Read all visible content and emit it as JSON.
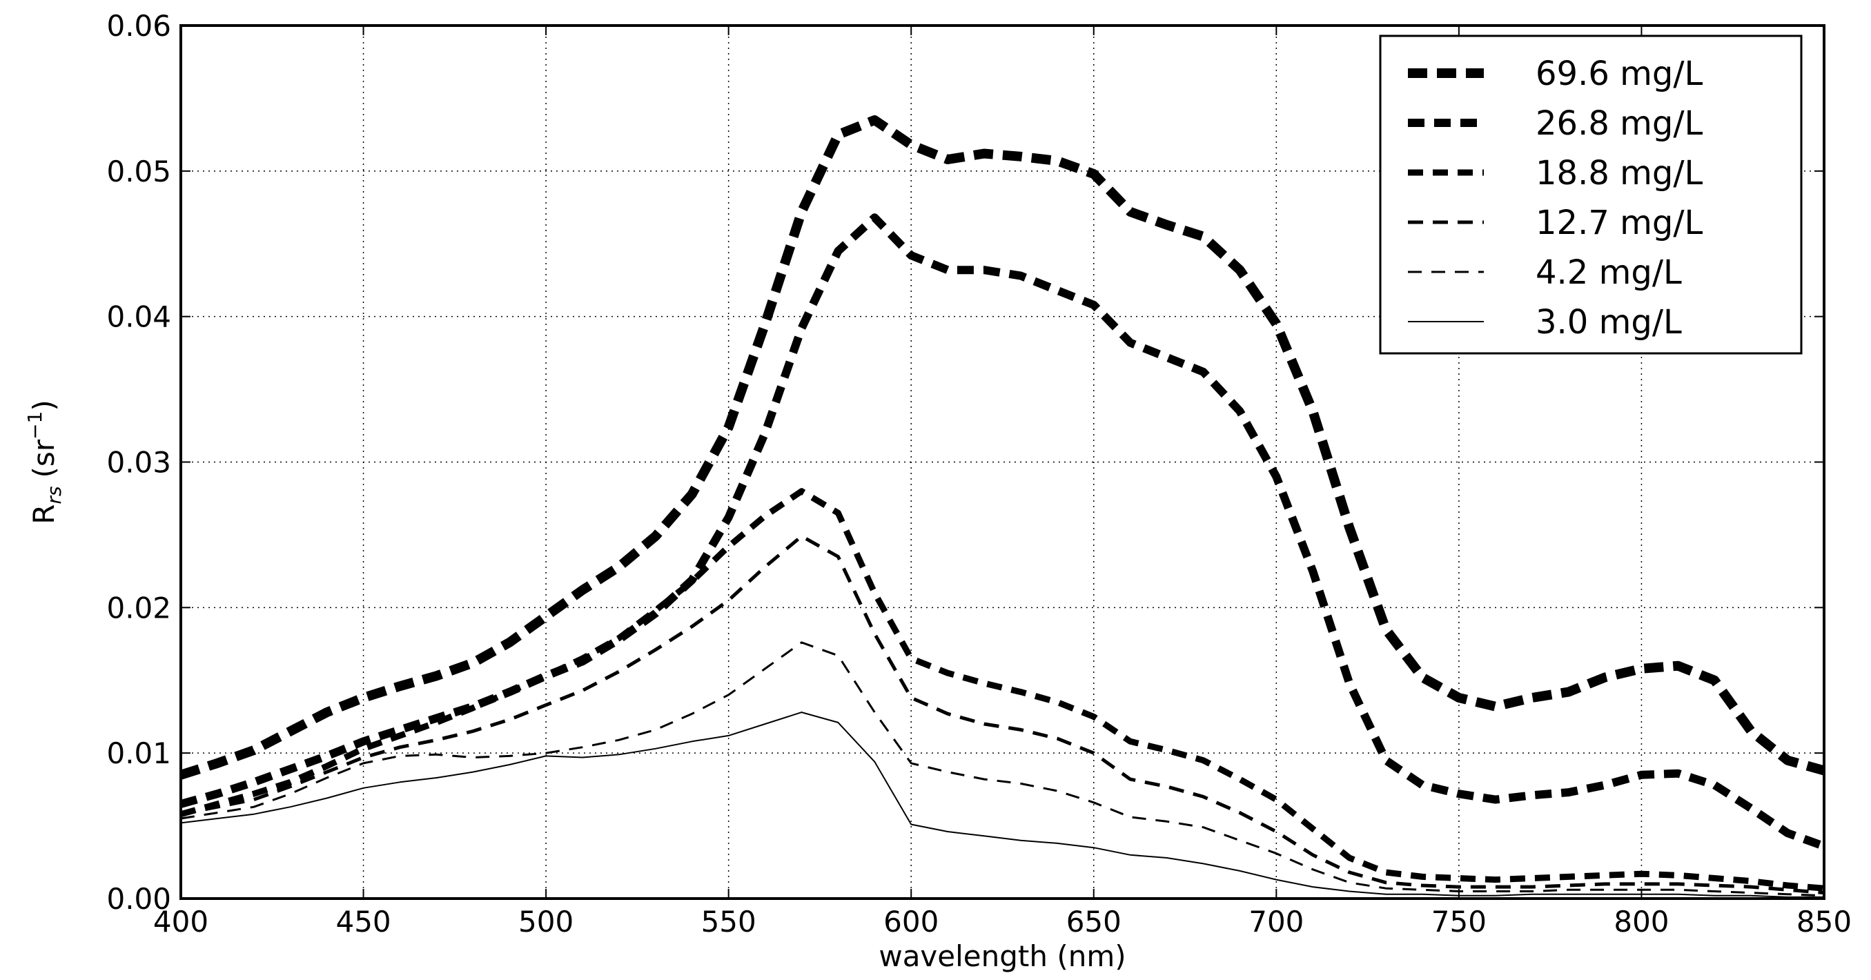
{
  "chart_data": {
    "type": "line",
    "xlabel": "wavelength (nm)",
    "ylabel": "R_rs (sr⁻¹)",
    "ylabel_parts": {
      "base": "R",
      "sub": "rs",
      "units": "(sr",
      "sup": "−1",
      "close": ")"
    },
    "xlim": [
      400,
      850
    ],
    "ylim": [
      0,
      0.06
    ],
    "xticks": [
      400,
      450,
      500,
      550,
      600,
      650,
      700,
      750,
      800,
      850
    ],
    "xtick_labels": [
      "400",
      "450",
      "500",
      "550",
      "600",
      "650",
      "700",
      "750",
      "800",
      "850"
    ],
    "yticks": [
      0,
      0.01,
      0.02,
      0.03,
      0.04,
      0.05,
      0.06
    ],
    "ytick_labels": [
      "0.00",
      "0.01",
      "0.02",
      "0.03",
      "0.04",
      "0.05",
      "0.06"
    ],
    "grid": true,
    "legend_position": "top-right",
    "x": [
      400,
      410,
      420,
      430,
      440,
      450,
      460,
      470,
      480,
      490,
      500,
      510,
      520,
      530,
      540,
      550,
      560,
      570,
      580,
      590,
      600,
      610,
      620,
      630,
      640,
      650,
      660,
      670,
      680,
      690,
      700,
      710,
      720,
      730,
      740,
      750,
      760,
      770,
      780,
      790,
      800,
      810,
      820,
      830,
      840,
      850
    ],
    "series": [
      {
        "name": "69.6 mg/L",
        "line_width": 14,
        "dash": [
          28,
          14
        ],
        "values": [
          0.0085,
          0.0093,
          0.0102,
          0.0115,
          0.0128,
          0.0138,
          0.0146,
          0.0153,
          0.0162,
          0.0176,
          0.0194,
          0.0212,
          0.0228,
          0.0249,
          0.0278,
          0.0324,
          0.0395,
          0.0472,
          0.0525,
          0.0535,
          0.0518,
          0.0508,
          0.0512,
          0.051,
          0.0507,
          0.0498,
          0.0472,
          0.0463,
          0.0455,
          0.0432,
          0.0395,
          0.0335,
          0.0255,
          0.0185,
          0.0152,
          0.0138,
          0.0132,
          0.0138,
          0.0142,
          0.0152,
          0.0158,
          0.016,
          0.015,
          0.0115,
          0.0095,
          0.0088
        ]
      },
      {
        "name": "26.8 mg/L",
        "line_width": 12,
        "dash": [
          24,
          14
        ],
        "values": [
          0.0065,
          0.0072,
          0.008,
          0.0089,
          0.0098,
          0.0108,
          0.0116,
          0.0124,
          0.0132,
          0.0142,
          0.0153,
          0.0163,
          0.0178,
          0.0196,
          0.0219,
          0.0262,
          0.032,
          0.0392,
          0.0445,
          0.0468,
          0.0442,
          0.0432,
          0.0432,
          0.0428,
          0.0418,
          0.0408,
          0.0382,
          0.0372,
          0.0362,
          0.0335,
          0.029,
          0.0225,
          0.0148,
          0.0095,
          0.0078,
          0.0072,
          0.0068,
          0.0071,
          0.0073,
          0.0078,
          0.0085,
          0.0086,
          0.0078,
          0.0062,
          0.0045,
          0.0036
        ]
      },
      {
        "name": "18.8 mg/L",
        "line_width": 9,
        "dash": [
          22,
          14
        ],
        "values": [
          0.0058,
          0.0065,
          0.0072,
          0.008,
          0.0091,
          0.0103,
          0.0112,
          0.0121,
          0.0131,
          0.0142,
          0.0153,
          0.0165,
          0.0179,
          0.0198,
          0.0218,
          0.0242,
          0.0263,
          0.028,
          0.0265,
          0.021,
          0.0165,
          0.0155,
          0.0148,
          0.0142,
          0.0135,
          0.0125,
          0.0108,
          0.0102,
          0.0095,
          0.0082,
          0.0068,
          0.0048,
          0.0028,
          0.0018,
          0.0015,
          0.0014,
          0.0013,
          0.0014,
          0.0015,
          0.0016,
          0.0017,
          0.0016,
          0.0014,
          0.0012,
          0.0009,
          0.0007
        ]
      },
      {
        "name": "12.7 mg/L",
        "line_width": 5,
        "dash": [
          22,
          14
        ],
        "values": [
          0.0058,
          0.0063,
          0.0068,
          0.0077,
          0.0087,
          0.0097,
          0.0104,
          0.0109,
          0.0115,
          0.0123,
          0.0133,
          0.0143,
          0.0156,
          0.0171,
          0.0187,
          0.0205,
          0.0228,
          0.0249,
          0.0235,
          0.0182,
          0.0138,
          0.0127,
          0.012,
          0.0116,
          0.011,
          0.01,
          0.0082,
          0.0077,
          0.007,
          0.0059,
          0.0046,
          0.003,
          0.0018,
          0.0011,
          0.0009,
          0.0008,
          0.0008,
          0.0008,
          0.0009,
          0.001,
          0.001,
          0.001,
          0.0009,
          0.0008,
          0.0006,
          0.0004
        ]
      },
      {
        "name": "4.2 mg/L",
        "line_width": 3,
        "dash": [
          20,
          14
        ],
        "values": [
          0.0055,
          0.0059,
          0.0063,
          0.0072,
          0.0083,
          0.0093,
          0.0098,
          0.0099,
          0.0097,
          0.0098,
          0.01,
          0.0104,
          0.0109,
          0.0116,
          0.0127,
          0.014,
          0.0158,
          0.0176,
          0.0167,
          0.0128,
          0.0093,
          0.0087,
          0.0082,
          0.0079,
          0.0074,
          0.0066,
          0.0056,
          0.0053,
          0.0049,
          0.004,
          0.0031,
          0.002,
          0.0011,
          0.0007,
          0.0006,
          0.0005,
          0.0005,
          0.0005,
          0.0006,
          0.0006,
          0.0006,
          0.0006,
          0.0005,
          0.0004,
          0.0003,
          0.0002
        ]
      },
      {
        "name": "3.0 mg/L",
        "line_width": 2,
        "dash": [],
        "values": [
          0.0052,
          0.0055,
          0.0058,
          0.0063,
          0.0069,
          0.0076,
          0.008,
          0.0083,
          0.0087,
          0.0092,
          0.0098,
          0.0097,
          0.0099,
          0.0103,
          0.0108,
          0.0112,
          0.012,
          0.0128,
          0.0121,
          0.0094,
          0.0051,
          0.0046,
          0.0043,
          0.004,
          0.0038,
          0.0035,
          0.003,
          0.0028,
          0.0024,
          0.0019,
          0.0013,
          0.0008,
          0.0005,
          0.0003,
          0.0003,
          0.0002,
          0.0002,
          0.0003,
          0.0003,
          0.0003,
          0.0003,
          0.0003,
          0.0002,
          0.0002,
          0.0001,
          0.0001
        ]
      }
    ]
  }
}
